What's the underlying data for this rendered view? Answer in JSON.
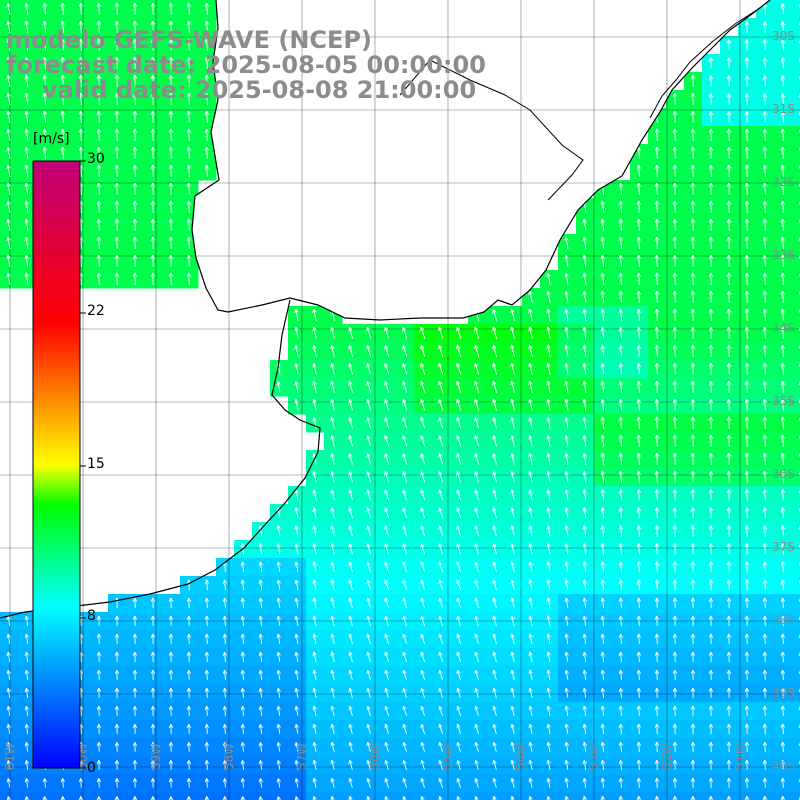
{
  "title": {
    "line1": "modelo GEFS-WAVE (NCEP)",
    "line2": "forecast date: 2025-08-05 00:00:00",
    "line3": "valid date: 2025-08-08 21:00:00"
  },
  "colorbar": {
    "units": "[m/s]",
    "range": [
      0,
      30
    ],
    "ticks": [
      {
        "value": 30,
        "label": "30"
      },
      {
        "value": 22,
        "label": "22"
      },
      {
        "value": 15,
        "label": "15"
      },
      {
        "value": 8,
        "label": "8"
      },
      {
        "value": 0,
        "label": "0"
      }
    ],
    "stops": [
      "#0000ff",
      "#00ffff",
      "#00ff00",
      "#ffff00",
      "#ff0000",
      "#c0007a"
    ]
  },
  "map": {
    "lon_range": [
      -61.5,
      -50.5
    ],
    "lat_range": [
      -41.0,
      -30.0
    ],
    "lon_labels": [
      "61W",
      "60W",
      "59W",
      "58W",
      "57W",
      "56W",
      "55W",
      "54W",
      "53W",
      "52W",
      "51W"
    ],
    "lat_labels": [
      "30S",
      "31S",
      "32S",
      "33S",
      "34S",
      "35S",
      "36S",
      "37S",
      "38S",
      "39S",
      "40S"
    ],
    "colors": {
      "land": "#ffffff",
      "coast": "#000000",
      "grid": "#000000",
      "arrow": "#ffffff",
      "label": "#808080"
    }
  },
  "wind_field": {
    "field": "wind speed and direction",
    "units": "m/s",
    "direction": "mostly from the south-southwest, blowing north-northeast",
    "typical_speed_range": [
      4,
      13
    ]
  }
}
